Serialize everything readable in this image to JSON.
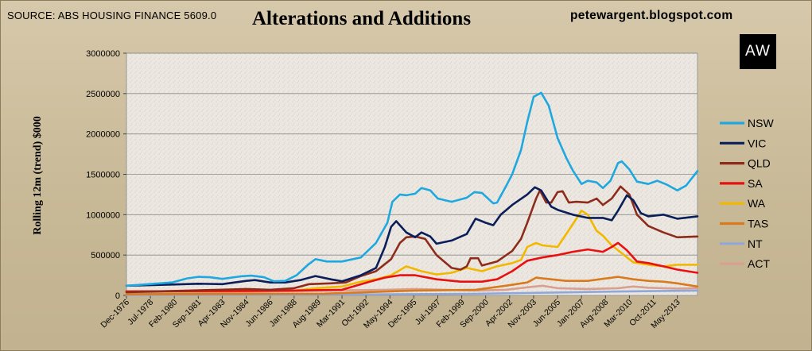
{
  "header": {
    "source": "SOURCE: ABS HOUSING FINANCE 5609.0",
    "title": "Alterations and Additions",
    "blog": "petewargent.blogspot.com",
    "logo": "AW"
  },
  "chart_data": {
    "type": "line",
    "title": "Alterations and Additions",
    "ylabel": "Rolling 12m (trend) $000",
    "xlabel": "",
    "ylim": [
      0,
      3000000
    ],
    "yticks": [
      0,
      500000,
      1000000,
      1500000,
      2000000,
      2500000,
      3000000
    ],
    "ytick_labels": [
      "0",
      "500000",
      "1000000",
      "1500000",
      "2000000",
      "2500000",
      "3000000"
    ],
    "xlim": [
      "1976-12",
      "2014-09"
    ],
    "xtick_labels": [
      "Dec-1976",
      "Jul-1978",
      "Feb-1980",
      "Sep-1981",
      "Apr-1983",
      "Nov-1984",
      "Jun-1986",
      "Jan-1988",
      "Aug-1989",
      "Mar-1991",
      "Oct-1992",
      "May-1994",
      "Dec-1995",
      "Jul-1997",
      "Feb-1999",
      "Sep-2000",
      "Apr-2002",
      "Nov-2003",
      "Jun-2005",
      "Jan-2007",
      "Aug-2008",
      "Mar-2010",
      "Oct-2011",
      "May-2013"
    ],
    "xtick_dates": [
      "1976-12",
      "1978-07",
      "1980-02",
      "1981-09",
      "1983-04",
      "1984-11",
      "1986-06",
      "1988-01",
      "1989-08",
      "1991-03",
      "1992-10",
      "1994-05",
      "1995-12",
      "1997-07",
      "1999-02",
      "2000-09",
      "2002-04",
      "2003-11",
      "2005-06",
      "2007-01",
      "2008-08",
      "2010-03",
      "2011-10",
      "2013-05"
    ],
    "grid": true,
    "legend": "right",
    "series": [
      {
        "name": "NSW",
        "color": "#1fa8e0",
        "points": [
          [
            "1976-12",
            120000
          ],
          [
            "1978-06",
            140000
          ],
          [
            "1979-12",
            160000
          ],
          [
            "1980-12",
            210000
          ],
          [
            "1981-09",
            230000
          ],
          [
            "1982-06",
            225000
          ],
          [
            "1983-04",
            205000
          ],
          [
            "1984-06",
            235000
          ],
          [
            "1985-03",
            245000
          ],
          [
            "1986-01",
            225000
          ],
          [
            "1986-09",
            175000
          ],
          [
            "1987-06",
            180000
          ],
          [
            "1988-03",
            250000
          ],
          [
            "1988-12",
            380000
          ],
          [
            "1989-06",
            450000
          ],
          [
            "1990-03",
            420000
          ],
          [
            "1991-03",
            420000
          ],
          [
            "1992-06",
            470000
          ],
          [
            "1993-06",
            650000
          ],
          [
            "1994-03",
            900000
          ],
          [
            "1994-07",
            1160000
          ],
          [
            "1995-01",
            1250000
          ],
          [
            "1995-06",
            1240000
          ],
          [
            "1996-01",
            1260000
          ],
          [
            "1996-06",
            1330000
          ],
          [
            "1997-01",
            1300000
          ],
          [
            "1997-07",
            1200000
          ],
          [
            "1998-06",
            1160000
          ],
          [
            "1999-06",
            1210000
          ],
          [
            "1999-12",
            1280000
          ],
          [
            "2000-06",
            1270000
          ],
          [
            "2001-03",
            1140000
          ],
          [
            "2001-06",
            1150000
          ],
          [
            "2002-01",
            1350000
          ],
          [
            "2002-06",
            1500000
          ],
          [
            "2003-01",
            1800000
          ],
          [
            "2003-06",
            2150000
          ],
          [
            "2003-11",
            2460000
          ],
          [
            "2004-05",
            2510000
          ],
          [
            "2004-11",
            2350000
          ],
          [
            "2005-06",
            1950000
          ],
          [
            "2006-01",
            1700000
          ],
          [
            "2006-06",
            1550000
          ],
          [
            "2007-01",
            1380000
          ],
          [
            "2007-06",
            1420000
          ],
          [
            "2008-01",
            1400000
          ],
          [
            "2008-06",
            1330000
          ],
          [
            "2008-12",
            1420000
          ],
          [
            "2009-06",
            1640000
          ],
          [
            "2009-09",
            1660000
          ],
          [
            "2010-03",
            1560000
          ],
          [
            "2010-09",
            1410000
          ],
          [
            "2011-06",
            1380000
          ],
          [
            "2012-01",
            1420000
          ],
          [
            "2012-09",
            1370000
          ],
          [
            "2013-05",
            1300000
          ],
          [
            "2013-12",
            1360000
          ],
          [
            "2014-09",
            1540000
          ]
        ]
      },
      {
        "name": "VIC",
        "color": "#0a1e5a",
        "points": [
          [
            "1976-12",
            120000
          ],
          [
            "1979-12",
            135000
          ],
          [
            "1981-09",
            145000
          ],
          [
            "1983-04",
            140000
          ],
          [
            "1984-11",
            180000
          ],
          [
            "1985-06",
            190000
          ],
          [
            "1986-06",
            160000
          ],
          [
            "1987-06",
            160000
          ],
          [
            "1988-06",
            190000
          ],
          [
            "1989-06",
            240000
          ],
          [
            "1990-06",
            200000
          ],
          [
            "1991-03",
            175000
          ],
          [
            "1992-06",
            250000
          ],
          [
            "1993-06",
            340000
          ],
          [
            "1994-01",
            600000
          ],
          [
            "1994-06",
            850000
          ],
          [
            "1994-10",
            920000
          ],
          [
            "1995-06",
            780000
          ],
          [
            "1996-01",
            720000
          ],
          [
            "1996-06",
            780000
          ],
          [
            "1997-01",
            730000
          ],
          [
            "1997-06",
            640000
          ],
          [
            "1998-06",
            680000
          ],
          [
            "1999-06",
            760000
          ],
          [
            "2000-01",
            950000
          ],
          [
            "2000-09",
            900000
          ],
          [
            "2001-03",
            870000
          ],
          [
            "2001-09",
            1000000
          ],
          [
            "2002-06",
            1120000
          ],
          [
            "2003-06",
            1250000
          ],
          [
            "2003-12",
            1340000
          ],
          [
            "2004-05",
            1300000
          ],
          [
            "2005-01",
            1100000
          ],
          [
            "2005-06",
            1060000
          ],
          [
            "2006-06",
            1000000
          ],
          [
            "2007-06",
            960000
          ],
          [
            "2008-06",
            960000
          ],
          [
            "2009-01",
            930000
          ],
          [
            "2009-06",
            1050000
          ],
          [
            "2010-01",
            1240000
          ],
          [
            "2010-06",
            1180000
          ],
          [
            "2010-12",
            1020000
          ],
          [
            "2011-06",
            980000
          ],
          [
            "2012-06",
            1000000
          ],
          [
            "2013-05",
            950000
          ],
          [
            "2014-09",
            980000
          ]
        ]
      },
      {
        "name": "QLD",
        "color": "#8e2c1c",
        "points": [
          [
            "1976-12",
            40000
          ],
          [
            "1980-01",
            55000
          ],
          [
            "1983-01",
            70000
          ],
          [
            "1984-11",
            80000
          ],
          [
            "1986-06",
            70000
          ],
          [
            "1988-01",
            90000
          ],
          [
            "1989-01",
            140000
          ],
          [
            "1990-06",
            150000
          ],
          [
            "1991-06",
            160000
          ],
          [
            "1992-06",
            240000
          ],
          [
            "1993-06",
            300000
          ],
          [
            "1994-06",
            450000
          ],
          [
            "1995-01",
            650000
          ],
          [
            "1995-06",
            720000
          ],
          [
            "1996-01",
            730000
          ],
          [
            "1996-09",
            700000
          ],
          [
            "1997-06",
            500000
          ],
          [
            "1998-06",
            340000
          ],
          [
            "1999-01",
            320000
          ],
          [
            "1999-06",
            360000
          ],
          [
            "1999-09",
            460000
          ],
          [
            "2000-03",
            460000
          ],
          [
            "2000-06",
            370000
          ],
          [
            "2001-06",
            420000
          ],
          [
            "2002-06",
            550000
          ],
          [
            "2003-01",
            700000
          ],
          [
            "2003-06",
            900000
          ],
          [
            "2004-01",
            1200000
          ],
          [
            "2004-04",
            1300000
          ],
          [
            "2004-09",
            1150000
          ],
          [
            "2005-01",
            1150000
          ],
          [
            "2005-06",
            1280000
          ],
          [
            "2005-10",
            1290000
          ],
          [
            "2006-03",
            1150000
          ],
          [
            "2006-09",
            1160000
          ],
          [
            "2007-06",
            1150000
          ],
          [
            "2008-01",
            1200000
          ],
          [
            "2008-06",
            1120000
          ],
          [
            "2009-01",
            1200000
          ],
          [
            "2009-08",
            1350000
          ],
          [
            "2010-03",
            1250000
          ],
          [
            "2010-09",
            1000000
          ],
          [
            "2011-06",
            860000
          ],
          [
            "2012-06",
            780000
          ],
          [
            "2013-05",
            720000
          ],
          [
            "2014-09",
            730000
          ]
        ]
      },
      {
        "name": "SA",
        "color": "#e81010",
        "points": [
          [
            "1976-12",
            50000
          ],
          [
            "1984-11",
            55000
          ],
          [
            "1988-01",
            60000
          ],
          [
            "1991-03",
            70000
          ],
          [
            "1993-01",
            170000
          ],
          [
            "1994-01",
            220000
          ],
          [
            "1995-01",
            250000
          ],
          [
            "1996-01",
            250000
          ],
          [
            "1997-06",
            200000
          ],
          [
            "1999-01",
            170000
          ],
          [
            "2000-06",
            170000
          ],
          [
            "2001-06",
            200000
          ],
          [
            "2002-06",
            300000
          ],
          [
            "2003-06",
            430000
          ],
          [
            "2004-06",
            470000
          ],
          [
            "2005-06",
            500000
          ],
          [
            "2006-06",
            540000
          ],
          [
            "2007-06",
            570000
          ],
          [
            "2008-06",
            540000
          ],
          [
            "2009-01",
            600000
          ],
          [
            "2009-06",
            650000
          ],
          [
            "2010-01",
            560000
          ],
          [
            "2010-09",
            420000
          ],
          [
            "2011-06",
            400000
          ],
          [
            "2012-06",
            360000
          ],
          [
            "2013-05",
            320000
          ],
          [
            "2014-09",
            280000
          ]
        ]
      },
      {
        "name": "WA",
        "color": "#f2b800",
        "points": [
          [
            "1976-12",
            50000
          ],
          [
            "1980-01",
            50000
          ],
          [
            "1984-11",
            55000
          ],
          [
            "1988-01",
            60000
          ],
          [
            "1989-06",
            90000
          ],
          [
            "1991-03",
            110000
          ],
          [
            "1992-06",
            170000
          ],
          [
            "1993-06",
            200000
          ],
          [
            "1994-06",
            250000
          ],
          [
            "1995-06",
            360000
          ],
          [
            "1996-06",
            300000
          ],
          [
            "1997-06",
            260000
          ],
          [
            "1998-06",
            280000
          ],
          [
            "1999-06",
            340000
          ],
          [
            "2000-06",
            300000
          ],
          [
            "2001-06",
            360000
          ],
          [
            "2002-06",
            400000
          ],
          [
            "2003-01",
            440000
          ],
          [
            "2003-06",
            600000
          ],
          [
            "2004-01",
            650000
          ],
          [
            "2004-06",
            620000
          ],
          [
            "2005-06",
            600000
          ],
          [
            "2006-06",
            880000
          ],
          [
            "2007-01",
            1050000
          ],
          [
            "2007-06",
            1000000
          ],
          [
            "2008-01",
            800000
          ],
          [
            "2008-06",
            740000
          ],
          [
            "2009-01",
            620000
          ],
          [
            "2009-06",
            560000
          ],
          [
            "2010-06",
            410000
          ],
          [
            "2011-06",
            380000
          ],
          [
            "2012-06",
            360000
          ],
          [
            "2013-05",
            380000
          ],
          [
            "2014-09",
            380000
          ]
        ]
      },
      {
        "name": "TAS",
        "color": "#d97a1c",
        "points": [
          [
            "1976-12",
            15000
          ],
          [
            "1990-01",
            22000
          ],
          [
            "1996-01",
            60000
          ],
          [
            "2000-01",
            70000
          ],
          [
            "2002-01",
            120000
          ],
          [
            "2003-06",
            160000
          ],
          [
            "2004-01",
            220000
          ],
          [
            "2004-06",
            210000
          ],
          [
            "2006-01",
            180000
          ],
          [
            "2007-06",
            180000
          ],
          [
            "2009-06",
            230000
          ],
          [
            "2010-06",
            200000
          ],
          [
            "2011-06",
            180000
          ],
          [
            "2012-06",
            170000
          ],
          [
            "2013-05",
            150000
          ],
          [
            "2014-09",
            110000
          ]
        ]
      },
      {
        "name": "NT",
        "color": "#8fa8d8",
        "points": [
          [
            "1976-12",
            5000
          ],
          [
            "1990-01",
            10000
          ],
          [
            "2000-01",
            20000
          ],
          [
            "2005-01",
            35000
          ],
          [
            "2010-01",
            50000
          ],
          [
            "2014-09",
            60000
          ]
        ]
      },
      {
        "name": "ACT",
        "color": "#d8a090",
        "points": [
          [
            "1976-12",
            30000
          ],
          [
            "1985-01",
            45000
          ],
          [
            "1990-01",
            60000
          ],
          [
            "1994-01",
            70000
          ],
          [
            "1996-01",
            80000
          ],
          [
            "1998-01",
            70000
          ],
          [
            "2000-01",
            60000
          ],
          [
            "2002-01",
            70000
          ],
          [
            "2003-06",
            100000
          ],
          [
            "2004-06",
            120000
          ],
          [
            "2005-06",
            90000
          ],
          [
            "2007-06",
            80000
          ],
          [
            "2009-06",
            90000
          ],
          [
            "2010-06",
            110000
          ],
          [
            "2011-06",
            95000
          ],
          [
            "2012-06",
            90000
          ],
          [
            "2013-05",
            85000
          ],
          [
            "2014-09",
            90000
          ]
        ]
      }
    ]
  }
}
